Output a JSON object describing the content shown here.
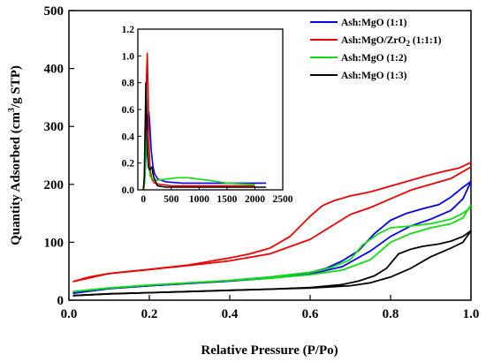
{
  "chart_data": [
    {
      "type": "line",
      "xlabel": "Relative Pressure (P/Po)",
      "ylabel_prefix": "Quantity Adsorbed (cm",
      "ylabel_sup": "3",
      "ylabel_suffix": "/g STP)",
      "xlim": [
        0,
        1
      ],
      "ylim": [
        0,
        500
      ],
      "x_ticks": [
        0.0,
        0.2,
        0.4,
        0.6,
        0.8,
        1.0
      ],
      "x_tick_labels": [
        "0.0",
        "0.2",
        "0.4",
        "0.6",
        "0.8",
        "1.0"
      ],
      "y_ticks": [
        0,
        100,
        200,
        300,
        400,
        500
      ],
      "y_tick_labels": [
        "0",
        "100",
        "200",
        "300",
        "400",
        "500"
      ],
      "grid": false,
      "legend_position": "top-right",
      "series": [
        {
          "name": "Ash:MgO (1:1)",
          "color": "#0000ee",
          "adsorption": [
            [
              0.01,
              12
            ],
            [
              0.1,
              20
            ],
            [
              0.2,
              25
            ],
            [
              0.3,
              29
            ],
            [
              0.4,
              33
            ],
            [
              0.5,
              38
            ],
            [
              0.6,
              45
            ],
            [
              0.68,
              58
            ],
            [
              0.75,
              85
            ],
            [
              0.8,
              110
            ],
            [
              0.85,
              128
            ],
            [
              0.9,
              140
            ],
            [
              0.95,
              155
            ],
            [
              0.98,
              175
            ],
            [
              1.0,
              205
            ]
          ],
          "desorption": [
            [
              1.0,
              205
            ],
            [
              0.98,
              195
            ],
            [
              0.95,
              178
            ],
            [
              0.92,
              165
            ],
            [
              0.88,
              158
            ],
            [
              0.84,
              150
            ],
            [
              0.8,
              138
            ],
            [
              0.76,
              115
            ],
            [
              0.72,
              85
            ],
            [
              0.68,
              68
            ],
            [
              0.64,
              55
            ],
            [
              0.6,
              48
            ],
            [
              0.5,
              40
            ],
            [
              0.4,
              34
            ],
            [
              0.3,
              29
            ],
            [
              0.2,
              25
            ],
            [
              0.1,
              20
            ],
            [
              0.01,
              12
            ]
          ]
        },
        {
          "name_prefix": "Ash:MgO/ZrO",
          "name_sub": "2",
          "name_suffix": " (1:1:1)",
          "color": "#ee0000",
          "adsorption": [
            [
              0.01,
              32
            ],
            [
              0.05,
              40
            ],
            [
              0.1,
              46
            ],
            [
              0.2,
              53
            ],
            [
              0.3,
              60
            ],
            [
              0.4,
              68
            ],
            [
              0.5,
              80
            ],
            [
              0.6,
              105
            ],
            [
              0.7,
              148
            ],
            [
              0.75,
              160
            ],
            [
              0.8,
              175
            ],
            [
              0.85,
              190
            ],
            [
              0.9,
              200
            ],
            [
              0.95,
              210
            ],
            [
              1.0,
              230
            ]
          ],
          "desorption": [
            [
              1.0,
              238
            ],
            [
              0.97,
              228
            ],
            [
              0.93,
              222
            ],
            [
              0.89,
              215
            ],
            [
              0.85,
              207
            ],
            [
              0.8,
              197
            ],
            [
              0.75,
              187
            ],
            [
              0.7,
              180
            ],
            [
              0.66,
              172
            ],
            [
              0.63,
              163
            ],
            [
              0.6,
              145
            ],
            [
              0.55,
              110
            ],
            [
              0.5,
              90
            ],
            [
              0.45,
              80
            ],
            [
              0.4,
              73
            ],
            [
              0.3,
              61
            ],
            [
              0.2,
              53
            ],
            [
              0.1,
              46
            ],
            [
              0.01,
              32
            ]
          ]
        },
        {
          "name": "Ash:MgO (1:2)",
          "color": "#11dd11",
          "adsorption": [
            [
              0.01,
              15
            ],
            [
              0.1,
              21
            ],
            [
              0.2,
              26
            ],
            [
              0.3,
              30
            ],
            [
              0.4,
              34
            ],
            [
              0.5,
              38
            ],
            [
              0.6,
              44
            ],
            [
              0.68,
              52
            ],
            [
              0.75,
              70
            ],
            [
              0.8,
              100
            ],
            [
              0.85,
              115
            ],
            [
              0.9,
              125
            ],
            [
              0.95,
              132
            ],
            [
              0.98,
              142
            ],
            [
              1.0,
              165
            ]
          ],
          "desorption": [
            [
              1.0,
              160
            ],
            [
              0.98,
              150
            ],
            [
              0.95,
              140
            ],
            [
              0.9,
              132
            ],
            [
              0.85,
              128
            ],
            [
              0.8,
              125
            ],
            [
              0.77,
              115
            ],
            [
              0.73,
              95
            ],
            [
              0.7,
              70
            ],
            [
              0.65,
              56
            ],
            [
              0.6,
              48
            ],
            [
              0.5,
              40
            ],
            [
              0.4,
              34
            ],
            [
              0.3,
              30
            ],
            [
              0.2,
              26
            ],
            [
              0.1,
              21
            ],
            [
              0.01,
              15
            ]
          ]
        },
        {
          "name": "Ash:MgO (1:3)",
          "color": "#000000",
          "adsorption": [
            [
              0.01,
              8
            ],
            [
              0.1,
              11
            ],
            [
              0.2,
              13
            ],
            [
              0.3,
              15
            ],
            [
              0.4,
              17
            ],
            [
              0.5,
              19
            ],
            [
              0.6,
              21
            ],
            [
              0.7,
              25
            ],
            [
              0.75,
              30
            ],
            [
              0.8,
              40
            ],
            [
              0.85,
              55
            ],
            [
              0.9,
              75
            ],
            [
              0.95,
              90
            ],
            [
              0.98,
              100
            ],
            [
              1.0,
              120
            ]
          ],
          "desorption": [
            [
              1.0,
              120
            ],
            [
              0.98,
              110
            ],
            [
              0.95,
              102
            ],
            [
              0.92,
              97
            ],
            [
              0.88,
              93
            ],
            [
              0.85,
              88
            ],
            [
              0.82,
              80
            ],
            [
              0.79,
              55
            ],
            [
              0.76,
              42
            ],
            [
              0.72,
              33
            ],
            [
              0.68,
              27
            ],
            [
              0.6,
              22
            ],
            [
              0.5,
              19
            ],
            [
              0.4,
              17
            ],
            [
              0.3,
              15
            ],
            [
              0.2,
              13
            ],
            [
              0.1,
              11
            ],
            [
              0.01,
              8
            ]
          ]
        }
      ]
    },
    {
      "type": "line",
      "role": "inset",
      "xlim": [
        -100,
        2500
      ],
      "ylim": [
        0,
        1.2
      ],
      "x_ticks": [
        0,
        500,
        1000,
        1500,
        2000,
        2500
      ],
      "x_tick_labels": [
        "0",
        "500",
        "1000",
        "1500",
        "2000",
        "2500"
      ],
      "y_ticks": [
        0.0,
        0.2,
        0.4,
        0.6,
        0.8,
        1.0,
        1.2
      ],
      "y_tick_labels": [
        "0.0",
        "0.2",
        "0.4",
        "0.6",
        "0.8",
        "1.0",
        "1.2"
      ],
      "series": [
        {
          "name": "Ash:MgO (1:1)",
          "color": "#0000ee",
          "points": [
            [
              0,
              0
            ],
            [
              20,
              0.05
            ],
            [
              40,
              0.2
            ],
            [
              60,
              0.4
            ],
            [
              80,
              0.55
            ],
            [
              100,
              0.58
            ],
            [
              120,
              0.45
            ],
            [
              140,
              0.3
            ],
            [
              170,
              0.18
            ],
            [
              200,
              0.12
            ],
            [
              260,
              0.08
            ],
            [
              400,
              0.06
            ],
            [
              700,
              0.05
            ],
            [
              1000,
              0.05
            ],
            [
              1500,
              0.05
            ],
            [
              2000,
              0.05
            ],
            [
              2200,
              0.05
            ]
          ]
        },
        {
          "name": "Ash:MgO/ZrO2 (1:1:1)",
          "color": "#ee0000",
          "points": [
            [
              0,
              0
            ],
            [
              10,
              0.02
            ],
            [
              25,
              0.2
            ],
            [
              40,
              0.5
            ],
            [
              55,
              0.85
            ],
            [
              70,
              1.02
            ],
            [
              85,
              0.7
            ],
            [
              100,
              0.35
            ],
            [
              120,
              0.15
            ],
            [
              150,
              0.08
            ],
            [
              200,
              0.05
            ],
            [
              300,
              0.04
            ],
            [
              500,
              0.03
            ],
            [
              800,
              0.03
            ],
            [
              1200,
              0.03
            ],
            [
              1600,
              0.03
            ],
            [
              2000,
              0.03
            ]
          ]
        },
        {
          "name": "Ash:MgO (1:2)",
          "color": "#11dd11",
          "points": [
            [
              0,
              0
            ],
            [
              20,
              0.05
            ],
            [
              40,
              0.25
            ],
            [
              60,
              0.4
            ],
            [
              75,
              0.35
            ],
            [
              90,
              0.2
            ],
            [
              120,
              0.1
            ],
            [
              200,
              0.07
            ],
            [
              400,
              0.08
            ],
            [
              600,
              0.09
            ],
            [
              800,
              0.09
            ],
            [
              1000,
              0.08
            ],
            [
              1200,
              0.07
            ],
            [
              1500,
              0.05
            ],
            [
              2000,
              0.04
            ]
          ]
        },
        {
          "name": "Ash:MgO (1:3)",
          "color": "#000000",
          "points": [
            [
              0,
              0
            ],
            [
              15,
              0.1
            ],
            [
              30,
              0.45
            ],
            [
              45,
              0.8
            ],
            [
              55,
              0.65
            ],
            [
              70,
              0.3
            ],
            [
              90,
              0.17
            ],
            [
              110,
              0.15
            ],
            [
              150,
              0.17
            ],
            [
              180,
              0.1
            ],
            [
              250,
              0.03
            ],
            [
              400,
              0.02
            ],
            [
              800,
              0.02
            ],
            [
              1500,
              0.02
            ],
            [
              2200,
              0.02
            ]
          ]
        }
      ]
    }
  ]
}
